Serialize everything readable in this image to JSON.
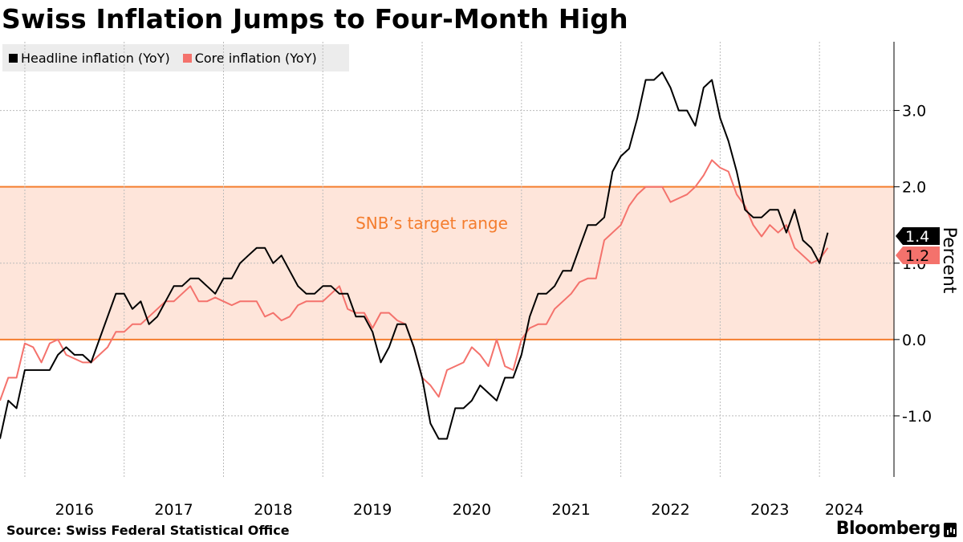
{
  "header": {
    "title": "Swiss Inflation Jumps to Four-Month High"
  },
  "footer": {
    "source": "Source: Swiss Federal Statistical Office",
    "brand": "Bloomberg"
  },
  "colors": {
    "headline": "#000000",
    "core": "#f4726c",
    "band_fill": "#fee5da",
    "band_line": "#f47d2e",
    "annotation": "#f47d2e",
    "grid": "#bbbbbb"
  },
  "chart_data": {
    "type": "line",
    "title": "Swiss Inflation Jumps to Four-Month High",
    "ylabel": "Percent",
    "ylim": [
      -1.8,
      3.9
    ],
    "y_ticks": [
      {
        "value": 3.0,
        "label": "3.0"
      },
      {
        "value": 2.0,
        "label": "2.0"
      },
      {
        "value": 1.0,
        "label": "1.0"
      },
      {
        "value": 0.0,
        "label": "0.0"
      },
      {
        "value": -1.0,
        "label": "-1.0"
      }
    ],
    "xlim": [
      2015.75,
      2024.75
    ],
    "x_ticks": [
      {
        "value": 2016.5,
        "label": "2016"
      },
      {
        "value": 2017.5,
        "label": "2017"
      },
      {
        "value": 2018.5,
        "label": "2018"
      },
      {
        "value": 2019.5,
        "label": "2019"
      },
      {
        "value": 2020.5,
        "label": "2020"
      },
      {
        "value": 2021.5,
        "label": "2021"
      },
      {
        "value": 2022.5,
        "label": "2022"
      },
      {
        "value": 2023.5,
        "label": "2023"
      },
      {
        "value": 2024.25,
        "label": "2024"
      }
    ],
    "year_boundaries": [
      2016,
      2017,
      2018,
      2019,
      2020,
      2021,
      2022,
      2023,
      2024
    ],
    "legend_position": "top-left",
    "target_band": {
      "low": 0.0,
      "high": 2.0,
      "label": "SNB’s target range"
    },
    "end_labels": [
      {
        "series": "Headline inflation (YoY)",
        "value": 1.4,
        "label": "1.4"
      },
      {
        "series": "Core inflation (YoY)",
        "value": 1.2,
        "label": "1.2"
      }
    ],
    "series": [
      {
        "name": "Headline inflation (YoY)",
        "start": 2015.75,
        "step": 0.0833333,
        "values": [
          -1.3,
          -0.8,
          -0.9,
          -0.4,
          -0.4,
          -0.4,
          -0.4,
          -0.2,
          -0.1,
          -0.2,
          -0.2,
          -0.3,
          0.0,
          0.3,
          0.6,
          0.6,
          0.4,
          0.5,
          0.2,
          0.3,
          0.5,
          0.7,
          0.7,
          0.8,
          0.8,
          0.7,
          0.6,
          0.8,
          0.8,
          1.0,
          1.1,
          1.2,
          1.2,
          1.0,
          1.1,
          0.9,
          0.7,
          0.6,
          0.6,
          0.7,
          0.7,
          0.6,
          0.6,
          0.3,
          0.3,
          0.1,
          -0.3,
          -0.1,
          0.2,
          0.2,
          -0.1,
          -0.5,
          -1.1,
          -1.3,
          -1.3,
          -0.9,
          -0.9,
          -0.8,
          -0.6,
          -0.7,
          -0.8,
          -0.5,
          -0.5,
          -0.2,
          0.3,
          0.6,
          0.6,
          0.7,
          0.9,
          0.9,
          1.2,
          1.5,
          1.5,
          1.6,
          2.2,
          2.4,
          2.5,
          2.9,
          3.4,
          3.4,
          3.5,
          3.3,
          3.0,
          3.0,
          2.8,
          3.3,
          3.4,
          2.9,
          2.6,
          2.2,
          1.7,
          1.6,
          1.6,
          1.7,
          1.7,
          1.4,
          1.7,
          1.3,
          1.2,
          1.0,
          1.4
        ]
      },
      {
        "name": "Core inflation (YoY)",
        "start": 2015.75,
        "step": 0.0833333,
        "values": [
          -0.8,
          -0.5,
          -0.5,
          -0.05,
          -0.1,
          -0.3,
          -0.05,
          0.0,
          -0.2,
          -0.25,
          -0.3,
          -0.3,
          -0.2,
          -0.1,
          0.1,
          0.1,
          0.2,
          0.2,
          0.3,
          0.4,
          0.5,
          0.5,
          0.6,
          0.7,
          0.5,
          0.5,
          0.55,
          0.5,
          0.45,
          0.5,
          0.5,
          0.5,
          0.3,
          0.35,
          0.25,
          0.3,
          0.45,
          0.5,
          0.5,
          0.5,
          0.6,
          0.7,
          0.4,
          0.35,
          0.35,
          0.15,
          0.35,
          0.35,
          0.25,
          0.2,
          -0.1,
          -0.5,
          -0.6,
          -0.75,
          -0.4,
          -0.35,
          -0.3,
          -0.1,
          -0.2,
          -0.35,
          0.0,
          -0.35,
          -0.4,
          0.0,
          0.15,
          0.2,
          0.2,
          0.4,
          0.5,
          0.6,
          0.75,
          0.8,
          0.8,
          1.3,
          1.4,
          1.5,
          1.75,
          1.9,
          2.0,
          2.0,
          2.0,
          1.8,
          1.85,
          1.9,
          2.0,
          2.15,
          2.35,
          2.25,
          2.2,
          1.9,
          1.75,
          1.5,
          1.35,
          1.5,
          1.4,
          1.5,
          1.2,
          1.1,
          1.0,
          1.05,
          1.2
        ]
      }
    ]
  }
}
